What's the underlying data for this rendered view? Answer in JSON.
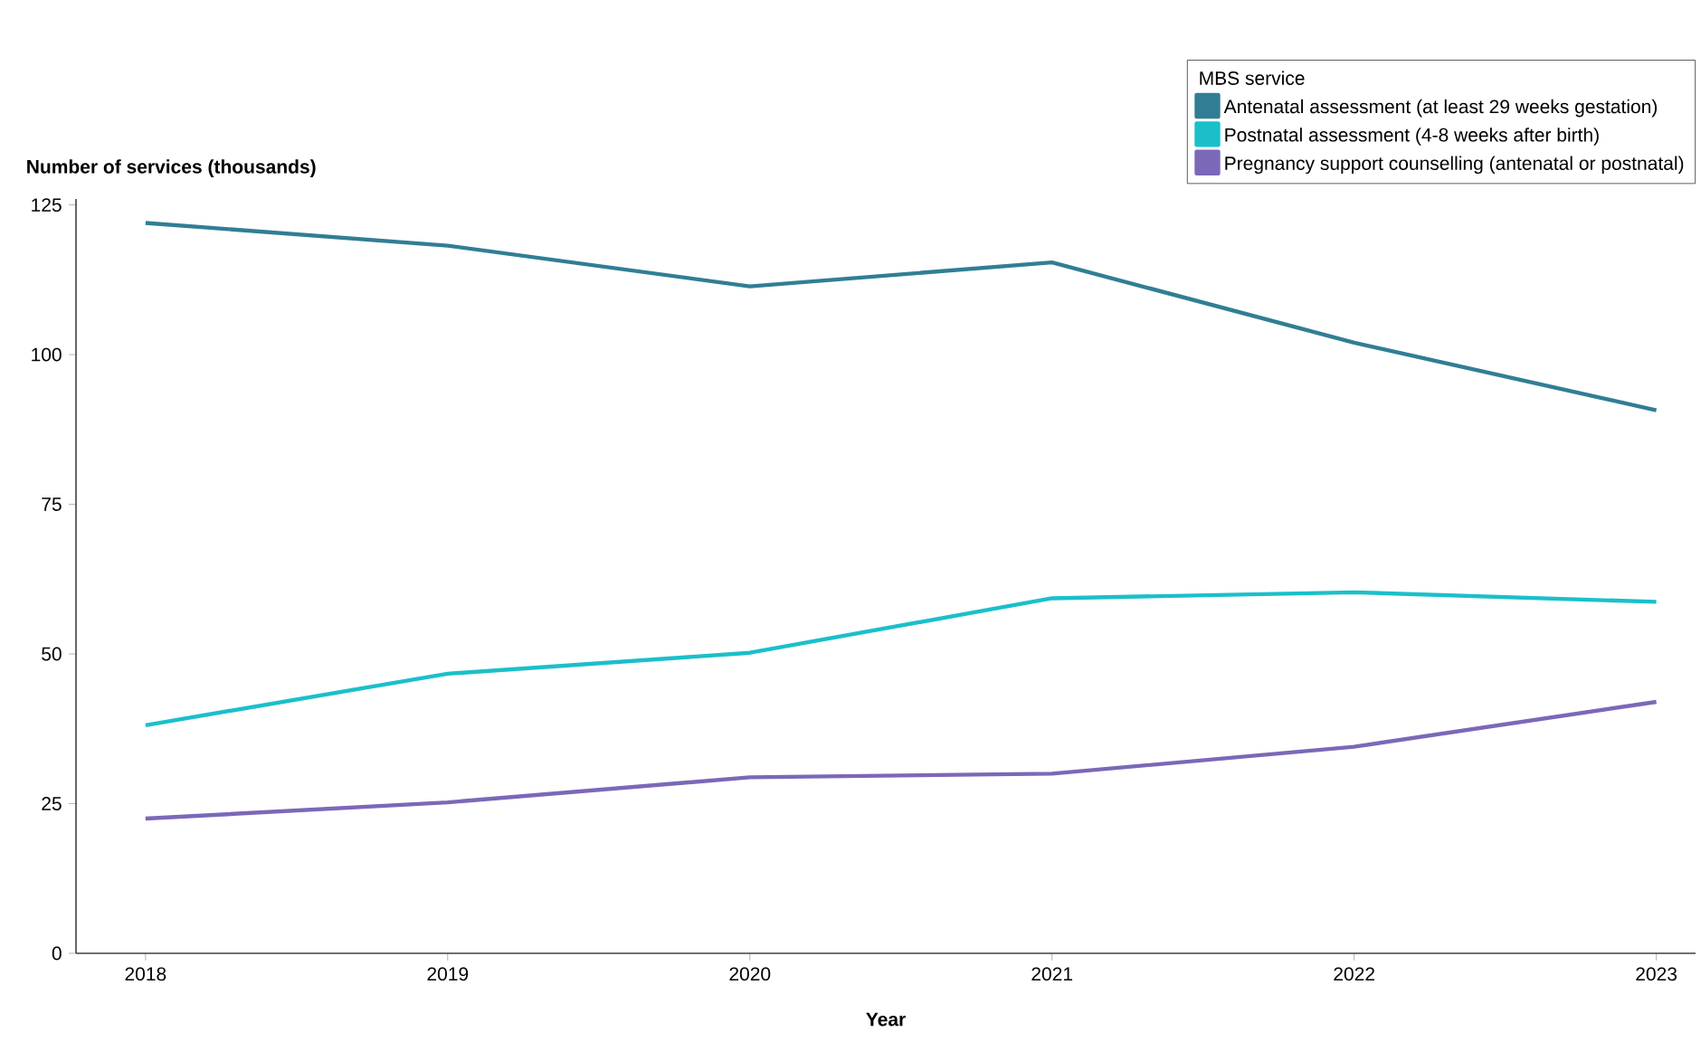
{
  "chart_data": {
    "type": "line",
    "xlabel": "Year",
    "ylabel": "Number of services (thousands)",
    "legend_title": "MBS service",
    "x": [
      2018,
      2019,
      2020,
      2021,
      2022,
      2023
    ],
    "series": [
      {
        "name": "Antenatal assessment (at least 29 weeks gestation)",
        "color": "#317e94",
        "values": [
          122.0,
          118.2,
          111.4,
          115.4,
          102.0,
          90.7
        ]
      },
      {
        "name": "Postnatal assessment (4-8 weeks after birth)",
        "color": "#1bbfca",
        "values": [
          38.1,
          46.7,
          50.2,
          59.3,
          60.3,
          58.7
        ]
      },
      {
        "name": "Pregnancy support counselling (antenatal or postnatal)",
        "color": "#7b68b8",
        "values": [
          22.5,
          25.2,
          29.4,
          30.0,
          34.5,
          42.0
        ]
      }
    ],
    "xlim": [
      2017.77,
      2023.13
    ],
    "ylim": [
      0,
      126
    ],
    "xticks": [
      2018,
      2019,
      2020,
      2021,
      2022,
      2023
    ],
    "yticks": [
      0,
      25,
      50,
      75,
      100,
      125
    ],
    "grid": false,
    "legend": "top right",
    "marker": "none",
    "line_style": "solid"
  }
}
